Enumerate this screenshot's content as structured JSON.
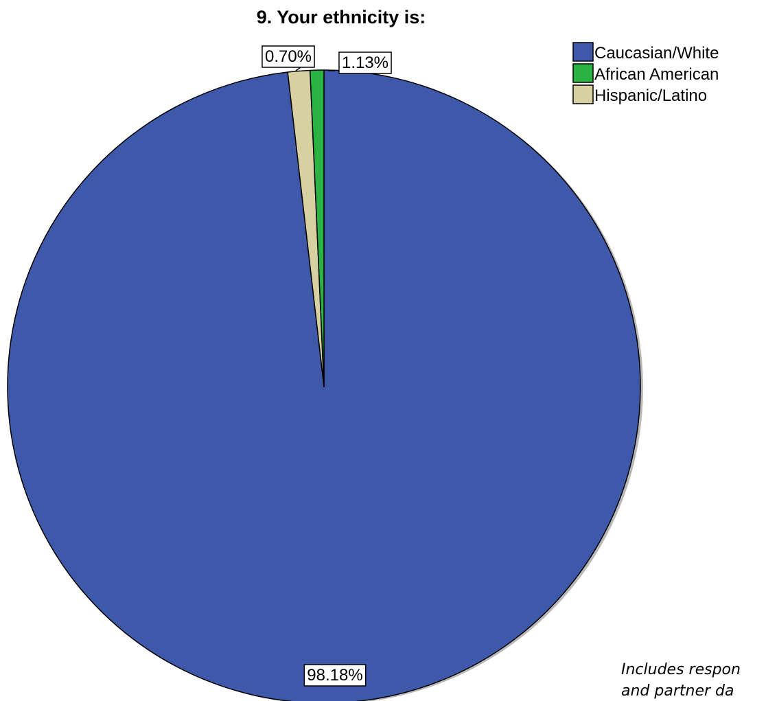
{
  "chart_data": {
    "type": "pie",
    "title": "9. Your ethnicity is:",
    "categories": [
      "Caucasian/White",
      "African American",
      "Hispanic/Latino"
    ],
    "values": [
      98.18,
      0.7,
      1.13
    ],
    "data_labels": [
      "98.18%",
      "0.70%",
      "1.13%"
    ],
    "colors": [
      "#3e58aa",
      "#2ab342",
      "#d7d1a2"
    ],
    "legend": {
      "placement": "top-right",
      "entries": [
        "Caucasian/White",
        "African American",
        "Hispanic/Latino"
      ]
    }
  },
  "note": {
    "line1": "Includes respon",
    "line2": "and partner da"
  }
}
